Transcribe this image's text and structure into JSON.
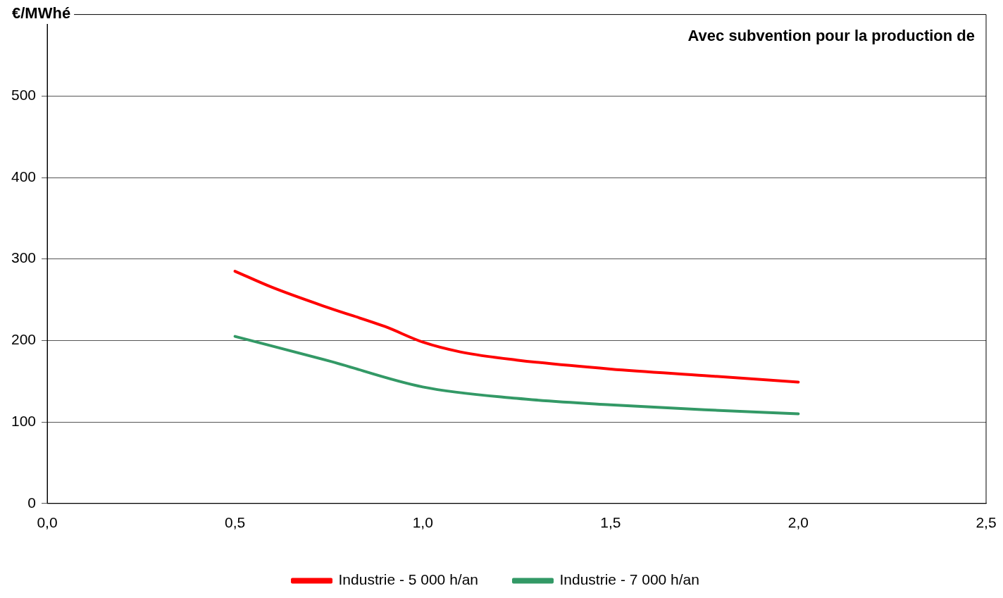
{
  "chart_data": {
    "type": "line",
    "title": "Avec subvention pour la production de",
    "ylabel": "€/MWhé",
    "series": [
      {
        "name": "Industrie - 5 000 h/an",
        "color": "#ff0000",
        "x": [
          0.5,
          0.6,
          0.75,
          0.9,
          1.0,
          1.1,
          1.25,
          1.5,
          1.75,
          2.0
        ],
        "values": [
          285,
          265,
          240,
          217,
          198,
          186,
          176,
          165,
          157,
          149
        ]
      },
      {
        "name": "Industrie - 7 000 h/an",
        "color": "#339966",
        "x": [
          0.5,
          0.75,
          1.0,
          1.25,
          1.5,
          1.75,
          2.0
        ],
        "values": [
          205,
          175,
          143,
          129,
          121,
          115,
          110
        ]
      }
    ],
    "xlim": [
      0,
      2.5
    ],
    "xticks": [
      {
        "value": 0,
        "label": "0,0"
      },
      {
        "value": 0.5,
        "label": "0,5"
      },
      {
        "value": 1,
        "label": "1,0"
      },
      {
        "value": 1.5,
        "label": "1,5"
      },
      {
        "value": 2,
        "label": "2,0"
      },
      {
        "value": 2.5,
        "label": "2,5"
      }
    ],
    "ylim": [
      0,
      600
    ],
    "yticks": [
      0,
      100,
      200,
      300,
      400,
      500
    ],
    "grid": "y",
    "legend": "bottom",
    "marker": "none",
    "line_style": "solid"
  }
}
